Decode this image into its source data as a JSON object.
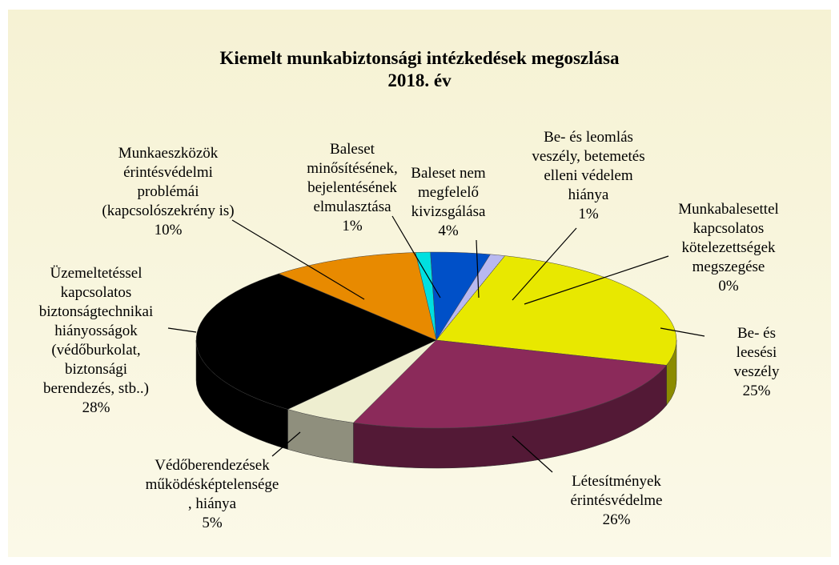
{
  "chart_data": {
    "type": "pie",
    "title": "Kiemelt munkabiztonsági intézkedések megoszlása",
    "subtitle": "2018. év",
    "categories": [
      "Baleset\nminősítésének,\nbejelentésének\nelmulasztása",
      "Baleset nem\nmegfelelő\nkivizsgálása",
      "Be- és leomlás\nveszély, betemetés\nelleni védelem\nhiánya",
      "Munkabalesettel\nkapcsolatos\nkötelezettségek\nmegszegése",
      "Be- és leesési\nveszély",
      "Létesítmények\nérintésvédelme",
      "Védőberendezések\nműködésképtelensége\n, hiánya",
      "Üzemeltetéssel\nkapcsolatos\nbiztonságtechnikai\nhiányosságok\n(védőburkolat,\nbiztonsági\nberendezés, stb..)",
      "Munkaeszközök\nérintésvédelmi\nproblémái\n(kapcsolószekrény is)"
    ],
    "values": [
      1,
      4,
      1,
      0,
      25,
      26,
      5,
      28,
      10
    ],
    "value_labels": [
      "1%",
      "4%",
      "1%",
      "0%",
      "25%",
      "26%",
      "5%",
      "28%",
      "10%"
    ],
    "colors": [
      "#00e0e0",
      "#0050c8",
      "#b8b8f0",
      "#9090d0",
      "#e8e800",
      "#8b2a5a",
      "#eeeed0",
      "#000000",
      "#e88a00"
    ]
  }
}
